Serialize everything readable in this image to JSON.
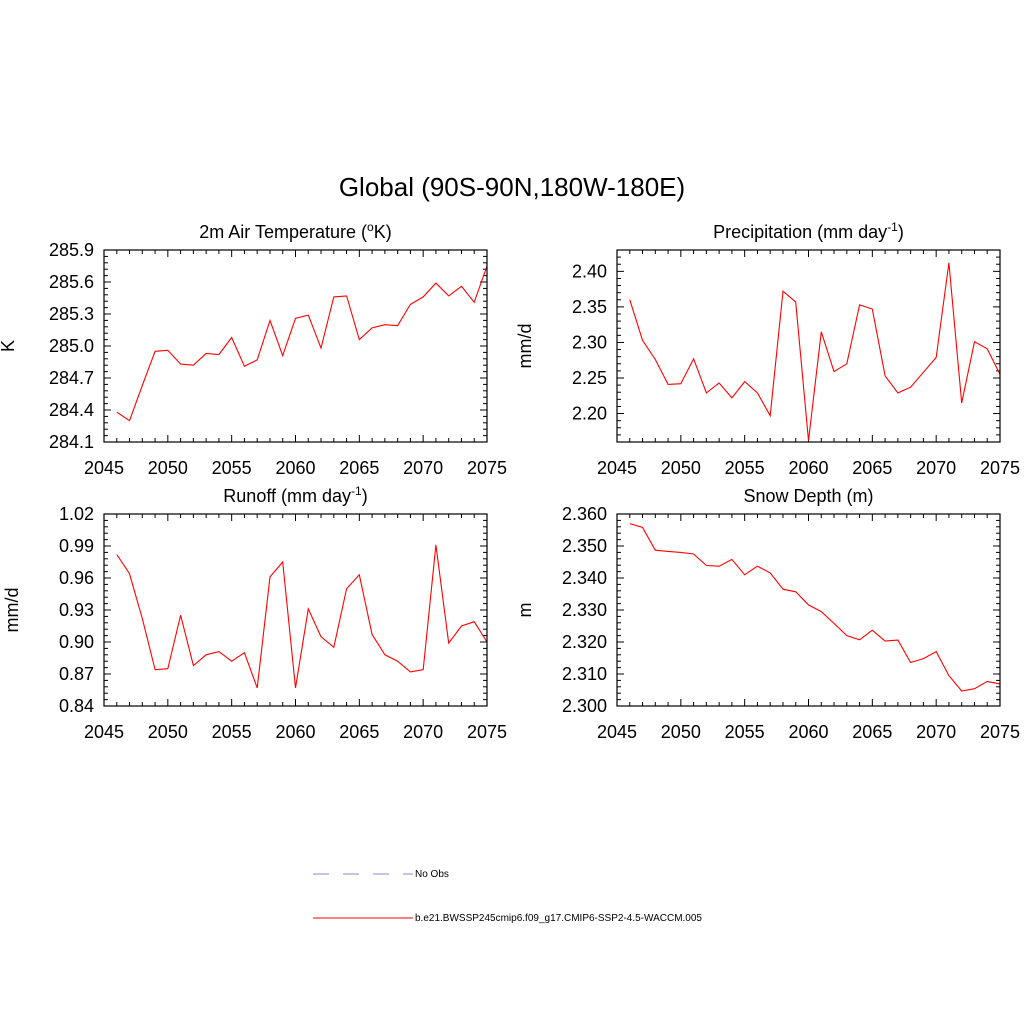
{
  "figure": {
    "title": "Global (90S-90N,180W-180E)"
  },
  "colors": {
    "series": "#ff0000",
    "obs": "#a0a0dc",
    "axis": "#000000"
  },
  "legend": {
    "placement": "bottom-center",
    "entries": [
      {
        "label": "No Obs",
        "style": "dashed",
        "color": "#a0a0dc"
      },
      {
        "label": "b.e21.BWSSP245cmip6.f09_g17.CMIP6-SSP2-4.5-WACCM.005",
        "style": "solid",
        "color": "#ff0000"
      }
    ]
  },
  "chart_data": [
    {
      "type": "line",
      "title": "2m Air Temperature (°K)",
      "title_main": "2m Air Temperature (",
      "title_sup": "o",
      "title_tail": "K)",
      "ylabel": "K",
      "xlim": [
        2045,
        2075
      ],
      "ylim": [
        284.1,
        285.9
      ],
      "xticks": [
        2045,
        2050,
        2055,
        2060,
        2065,
        2070,
        2075
      ],
      "yticks": [
        284.1,
        284.4,
        284.7,
        285.0,
        285.3,
        285.6,
        285.9
      ],
      "ytick_labels": [
        "284.1",
        "284.4",
        "284.7",
        "285.0",
        "285.3",
        "285.6",
        "285.9"
      ],
      "x": [
        2046,
        2047,
        2048,
        2049,
        2050,
        2051,
        2052,
        2053,
        2054,
        2055,
        2056,
        2057,
        2058,
        2059,
        2060,
        2061,
        2062,
        2063,
        2064,
        2065,
        2066,
        2067,
        2068,
        2069,
        2070,
        2071,
        2072,
        2073,
        2074,
        2075
      ],
      "values": [
        284.38,
        284.3,
        284.63,
        284.95,
        284.96,
        284.83,
        284.82,
        284.93,
        284.92,
        285.08,
        284.81,
        284.87,
        285.24,
        284.91,
        285.26,
        285.29,
        284.98,
        285.46,
        285.47,
        285.06,
        285.17,
        285.2,
        285.19,
        285.39,
        285.46,
        285.59,
        285.47,
        285.56,
        285.41,
        285.75
      ]
    },
    {
      "type": "line",
      "title": "Precipitation (mm day-1)",
      "title_main": "Precipitation (mm day",
      "title_sup": "-1",
      "title_tail": ")",
      "ylabel": "mm/d",
      "xlim": [
        2045,
        2075
      ],
      "ylim": [
        2.16,
        2.43
      ],
      "xticks": [
        2045,
        2050,
        2055,
        2060,
        2065,
        2070,
        2075
      ],
      "yticks": [
        2.2,
        2.25,
        2.3,
        2.35,
        2.4
      ],
      "ytick_labels": [
        "2.20",
        "2.25",
        "2.30",
        "2.35",
        "2.40"
      ],
      "x": [
        2046,
        2047,
        2048,
        2049,
        2050,
        2051,
        2052,
        2053,
        2054,
        2055,
        2056,
        2057,
        2058,
        2059,
        2060,
        2061,
        2062,
        2063,
        2064,
        2065,
        2066,
        2067,
        2068,
        2069,
        2070,
        2071,
        2072,
        2073,
        2074,
        2075
      ],
      "values": [
        2.36,
        2.303,
        2.276,
        2.241,
        2.242,
        2.277,
        2.229,
        2.243,
        2.222,
        2.245,
        2.229,
        2.197,
        2.372,
        2.357,
        2.162,
        2.315,
        2.259,
        2.27,
        2.353,
        2.347,
        2.253,
        2.229,
        2.237,
        2.258,
        2.279,
        2.412,
        2.215,
        2.301,
        2.291,
        2.255
      ]
    },
    {
      "type": "line",
      "title": "Runoff (mm day-1)",
      "title_main": "Runoff (mm day",
      "title_sup": "-1",
      "title_tail": ")",
      "ylabel": "mm/d",
      "xlim": [
        2045,
        2075
      ],
      "ylim": [
        0.84,
        1.02
      ],
      "xticks": [
        2045,
        2050,
        2055,
        2060,
        2065,
        2070,
        2075
      ],
      "yticks": [
        0.84,
        0.87,
        0.9,
        0.93,
        0.96,
        0.99,
        1.02
      ],
      "ytick_labels": [
        "0.84",
        "0.87",
        "0.90",
        "0.93",
        "0.96",
        "0.99",
        "1.02"
      ],
      "x": [
        2046,
        2047,
        2048,
        2049,
        2050,
        2051,
        2052,
        2053,
        2054,
        2055,
        2056,
        2057,
        2058,
        2059,
        2060,
        2061,
        2062,
        2063,
        2064,
        2065,
        2066,
        2067,
        2068,
        2069,
        2070,
        2071,
        2072,
        2073,
        2074,
        2075
      ],
      "values": [
        0.982,
        0.964,
        0.922,
        0.874,
        0.875,
        0.925,
        0.878,
        0.888,
        0.891,
        0.882,
        0.89,
        0.857,
        0.961,
        0.975,
        0.857,
        0.931,
        0.905,
        0.895,
        0.95,
        0.963,
        0.907,
        0.888,
        0.882,
        0.872,
        0.874,
        0.991,
        0.899,
        0.915,
        0.919,
        0.9
      ]
    },
    {
      "type": "line",
      "title": "Snow Depth (m)",
      "title_main": "Snow Depth (m)",
      "title_sup": "",
      "title_tail": "",
      "ylabel": "m",
      "xlim": [
        2045,
        2075
      ],
      "ylim": [
        2.3,
        2.36
      ],
      "xticks": [
        2045,
        2050,
        2055,
        2060,
        2065,
        2070,
        2075
      ],
      "yticks": [
        2.3,
        2.31,
        2.32,
        2.33,
        2.34,
        2.35,
        2.36
      ],
      "ytick_labels": [
        "2.300",
        "2.310",
        "2.320",
        "2.330",
        "2.340",
        "2.350",
        "2.360"
      ],
      "x": [
        2046,
        2047,
        2048,
        2049,
        2050,
        2051,
        2052,
        2053,
        2054,
        2055,
        2056,
        2057,
        2058,
        2059,
        2060,
        2061,
        2062,
        2063,
        2064,
        2065,
        2066,
        2067,
        2068,
        2069,
        2070,
        2071,
        2072,
        2073,
        2074,
        2075
      ],
      "values": [
        2.357,
        2.3558,
        2.3487,
        2.3483,
        2.348,
        2.3475,
        2.3439,
        2.3437,
        2.3458,
        2.341,
        2.3437,
        2.3416,
        2.3365,
        2.3357,
        2.3316,
        2.3295,
        2.3258,
        2.322,
        2.3207,
        2.3237,
        2.3203,
        2.3206,
        2.3136,
        2.3148,
        2.317,
        2.3095,
        2.3047,
        2.3054,
        2.3077,
        2.3069
      ]
    }
  ]
}
